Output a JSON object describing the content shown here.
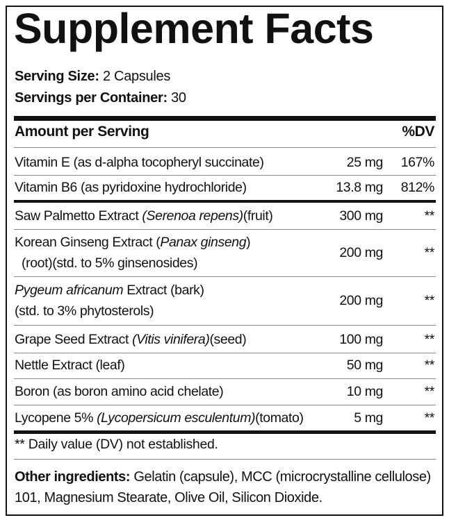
{
  "title": "Supplement Facts",
  "serving_size": {
    "label": "Serving Size:",
    "value": "2 Capsules"
  },
  "servings_per_container": {
    "label": "Servings per Container:",
    "value": "30"
  },
  "header": {
    "amount": "Amount per Serving",
    "dv": "%DV"
  },
  "rows": [
    {
      "name": "Vitamin E (as d-alpha tocopheryl succinate)",
      "amount": "25 mg",
      "dv": "167%"
    },
    {
      "name": "Vitamin B6 (as pyridoxine hydrochloride)",
      "amount": "13.8 mg",
      "dv": "812%"
    },
    {
      "name_a": "Saw Palmetto Extract ",
      "name_i": "(Serenoa repens)",
      "name_b": "(fruit)",
      "amount": "300 mg",
      "dv": "**"
    },
    {
      "name_a": "Korean Ginseng Extract (",
      "name_i": "Panax ginseng",
      "name_b": ")",
      "line2": "(root)(std. to 5% ginsenosides)",
      "amount": "200 mg",
      "dv": "**"
    },
    {
      "name_i": "Pygeum africanum",
      "name_b": " Extract (bark)",
      "line2": "(std. to 3% phytosterols)",
      "amount": "200 mg",
      "dv": "**"
    },
    {
      "name_a": "Grape Seed Extract ",
      "name_i": "(Vitis vinifera)",
      "name_b": "(seed)",
      "amount": "100 mg",
      "dv": "**"
    },
    {
      "name": "Nettle Extract (leaf)",
      "amount": "50 mg",
      "dv": "**"
    },
    {
      "name": "Boron (as boron amino acid chelate)",
      "amount": "10 mg",
      "dv": "**"
    },
    {
      "name_a": "Lycopene 5% ",
      "name_i": "(Lycopersicum esculentum)",
      "name_b": "(tomato)",
      "amount": "5 mg",
      "dv": "**"
    }
  ],
  "footnote": "** Daily value (DV) not established.",
  "other_ingredients": {
    "label": "Other ingredients:",
    "text": " Gelatin (capsule), MCC (microcrystalline cellulose) 101, Magnesium Stearate, Olive Oil, Silicon Dioxide."
  }
}
